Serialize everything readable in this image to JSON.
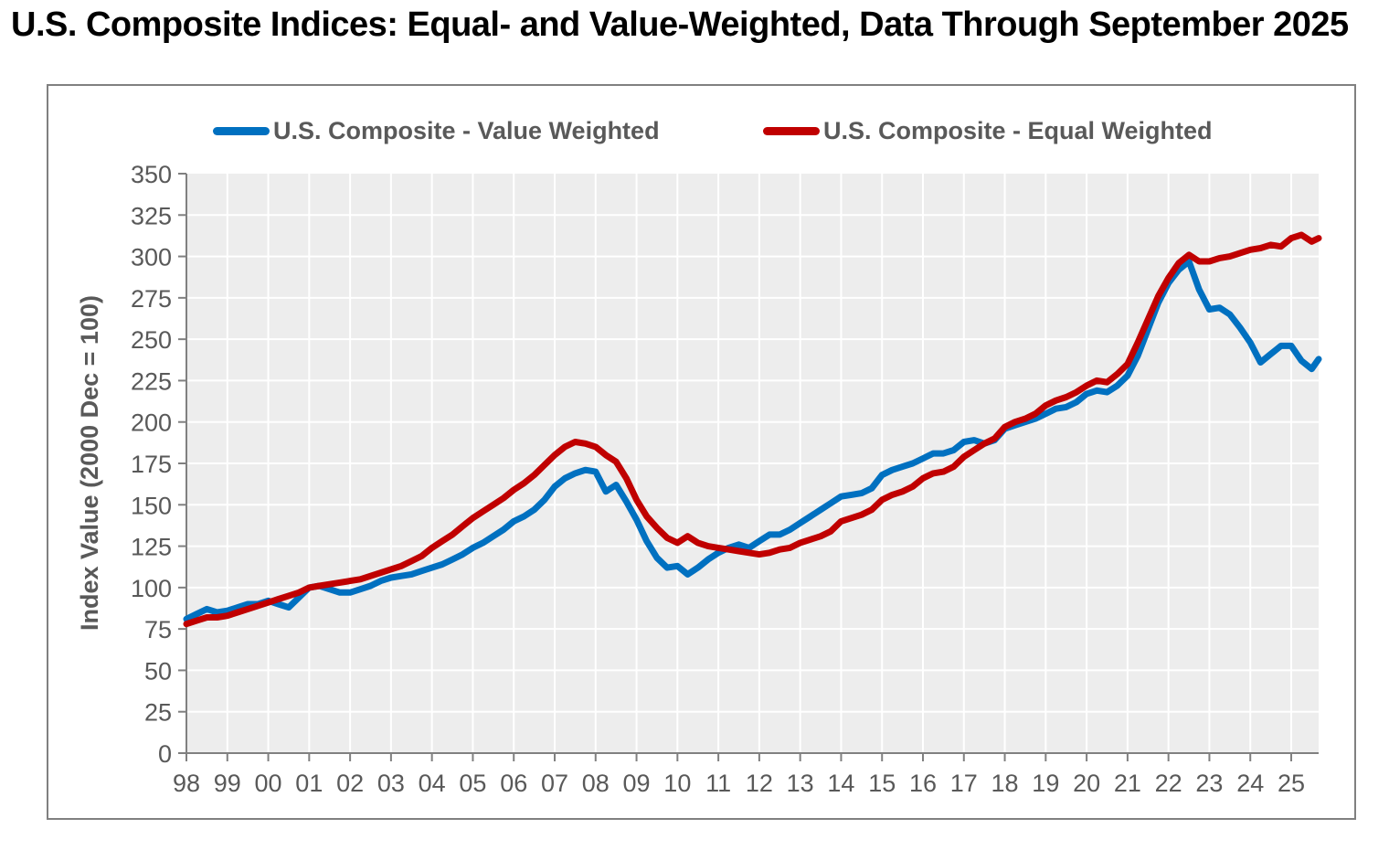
{
  "page_title": "U.S. Composite Indices: Equal- and Value-Weighted, Data Through September 2025",
  "colors": {
    "value_weighted": "#0070C0",
    "equal_weighted": "#C00000",
    "plot_background": "#EDEDED",
    "gridline": "#FFFFFF",
    "axis_line": "#808080",
    "axis_text": "#595959",
    "title_text": "#000000",
    "chart_border": "#808080"
  },
  "chart_data": {
    "type": "line",
    "title": "U.S. Composite Indices: Equal- and Value-Weighted, Data Through September 2025",
    "xlabel": "",
    "ylabel": "Index Value (2000 Dec = 100)",
    "ylim": [
      0,
      350
    ],
    "ytick_step": 25,
    "ytick_labels": [
      "0",
      "25",
      "50",
      "75",
      "100",
      "125",
      "150",
      "175",
      "200",
      "225",
      "250",
      "275",
      "300",
      "325",
      "350"
    ],
    "xtick_labels": [
      "98",
      "99",
      "00",
      "01",
      "02",
      "03",
      "04",
      "05",
      "06",
      "07",
      "08",
      "09",
      "10",
      "11",
      "12",
      "13",
      "14",
      "15",
      "16",
      "17",
      "18",
      "19",
      "20",
      "21",
      "22",
      "23",
      "24",
      "25"
    ],
    "x_range_years": [
      1998.0,
      2025.67
    ],
    "grid": true,
    "legend_position": "top",
    "resolution_note": "quarterly samples estimated from chart; final point Sep 2025",
    "x": [
      1998,
      1998.25,
      1998.5,
      1998.75,
      1999,
      1999.25,
      1999.5,
      1999.75,
      2000,
      2000.25,
      2000.5,
      2000.75,
      2001,
      2001.25,
      2001.5,
      2001.75,
      2002,
      2002.25,
      2002.5,
      2002.75,
      2003,
      2003.25,
      2003.5,
      2003.75,
      2004,
      2004.25,
      2004.5,
      2004.75,
      2005,
      2005.25,
      2005.5,
      2005.75,
      2006,
      2006.25,
      2006.5,
      2006.75,
      2007,
      2007.25,
      2007.5,
      2007.75,
      2008,
      2008.25,
      2008.5,
      2008.75,
      2009,
      2009.25,
      2009.5,
      2009.75,
      2010,
      2010.25,
      2010.5,
      2010.75,
      2011,
      2011.25,
      2011.5,
      2011.75,
      2012,
      2012.25,
      2012.5,
      2012.75,
      2013,
      2013.25,
      2013.5,
      2013.75,
      2014,
      2014.25,
      2014.5,
      2014.75,
      2015,
      2015.25,
      2015.5,
      2015.75,
      2016,
      2016.25,
      2016.5,
      2016.75,
      2017,
      2017.25,
      2017.5,
      2017.75,
      2018,
      2018.25,
      2018.5,
      2018.75,
      2019,
      2019.25,
      2019.5,
      2019.75,
      2020,
      2020.25,
      2020.5,
      2020.75,
      2021,
      2021.25,
      2021.5,
      2021.75,
      2022,
      2022.25,
      2022.5,
      2022.75,
      2023,
      2023.25,
      2023.5,
      2023.75,
      2024,
      2024.25,
      2024.5,
      2024.75,
      2025,
      2025.25,
      2025.5,
      2025.67
    ],
    "series": [
      {
        "name": "U.S. Composite - Value Weighted",
        "color": "#0070C0",
        "values": [
          81,
          84,
          87,
          85,
          86,
          88,
          90,
          90,
          92,
          90,
          88,
          94,
          100,
          101,
          99,
          97,
          97,
          99,
          101,
          104,
          106,
          107,
          108,
          110,
          112,
          114,
          117,
          120,
          124,
          127,
          131,
          135,
          140,
          143,
          147,
          153,
          161,
          166,
          169,
          171,
          170,
          158,
          162,
          152,
          141,
          128,
          118,
          112,
          113,
          108,
          112,
          117,
          121,
          124,
          126,
          124,
          128,
          132,
          132,
          135,
          139,
          143,
          147,
          151,
          155,
          156,
          157,
          160,
          168,
          171,
          173,
          175,
          178,
          181,
          181,
          183,
          188,
          189,
          187,
          189,
          196,
          198,
          200,
          202,
          205,
          208,
          209,
          212,
          217,
          219,
          218,
          222,
          228,
          240,
          256,
          272,
          284,
          292,
          297,
          280,
          268,
          269,
          265,
          257,
          248,
          236,
          241,
          246,
          246,
          237,
          232,
          238
        ]
      },
      {
        "name": "U.S. Composite - Equal Weighted",
        "color": "#C00000",
        "values": [
          78,
          80,
          82,
          82,
          83,
          85,
          87,
          89,
          91,
          93,
          95,
          97,
          100,
          101,
          102,
          103,
          104,
          105,
          107,
          109,
          111,
          113,
          116,
          119,
          124,
          128,
          132,
          137,
          142,
          146,
          150,
          154,
          159,
          163,
          168,
          174,
          180,
          185,
          188,
          187,
          185,
          180,
          176,
          166,
          153,
          143,
          136,
          130,
          127,
          131,
          127,
          125,
          124,
          123,
          122,
          121,
          120,
          121,
          123,
          124,
          127,
          129,
          131,
          134,
          140,
          142,
          144,
          147,
          153,
          156,
          158,
          161,
          166,
          169,
          170,
          173,
          179,
          183,
          187,
          190,
          197,
          200,
          202,
          205,
          210,
          213,
          215,
          218,
          222,
          225,
          224,
          229,
          235,
          248,
          262,
          276,
          287,
          296,
          301,
          297,
          297,
          299,
          300,
          302,
          304,
          305,
          307,
          306,
          311,
          313,
          309,
          311
        ]
      }
    ]
  }
}
